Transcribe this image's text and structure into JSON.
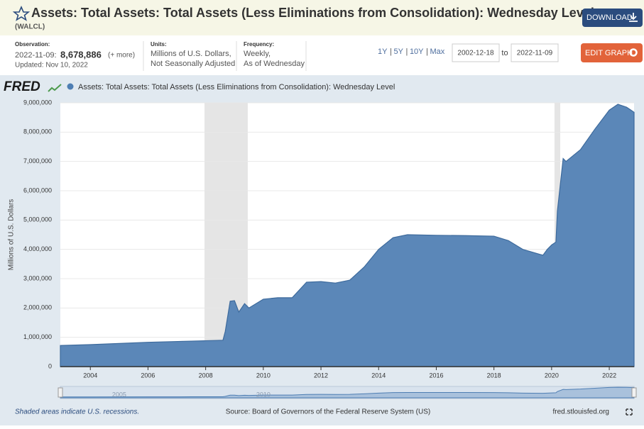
{
  "header": {
    "title": "Assets: Total Assets: Total Assets (Less Eliminations from Consolidation): Wednesday Level",
    "series_id": "(WALCL)",
    "download": "DOWNLOAD",
    "edit_graph": "EDIT GRAPH"
  },
  "info": {
    "observation_label": "Observation:",
    "observation_date": "2022-11-09:",
    "observation_value": "8,678,886",
    "more": "(+ more)",
    "updated": "Updated: Nov 10, 2022",
    "units_label": "Units:",
    "units_1": "Millions of U.S. Dollars,",
    "units_2": "Not Seasonally Adjusted",
    "frequency_label": "Frequency:",
    "frequency_1": "Weekly,",
    "frequency_2": "As of Wednesday",
    "ranges": [
      "1Y",
      "5Y",
      "10Y",
      "Max"
    ],
    "date_from": "2002-12-18",
    "to": "to",
    "date_to": "2022-11-09"
  },
  "logo": "FRED",
  "chart_data": {
    "type": "area",
    "y_label": "Millions of U.S. Dollars",
    "x": [
      2002.96,
      2004,
      2006,
      2007.5,
      2008.6,
      2008.68,
      2008.85,
      2009.0,
      2009.15,
      2009.35,
      2009.5,
      2010.0,
      2010.5,
      2011.0,
      2011.5,
      2012.0,
      2012.5,
      2013.0,
      2013.5,
      2014.0,
      2014.5,
      2015.0,
      2016,
      2017,
      2018,
      2018.5,
      2019.0,
      2019.7,
      2019.85,
      2020.0,
      2020.15,
      2020.2,
      2020.4,
      2020.5,
      2021.0,
      2021.5,
      2022.0,
      2022.3,
      2022.6,
      2022.86
    ],
    "series": [
      {
        "name": "Assets: Total Assets: Total Assets (Less Eliminations from Consolidation): Wednesday Level",
        "color": "#5b87b8",
        "values": [
          720000,
          750000,
          830000,
          870000,
          900000,
          1200000,
          2230000,
          2250000,
          1860000,
          2150000,
          2000000,
          2300000,
          2350000,
          2350000,
          2880000,
          2900000,
          2850000,
          2950000,
          3400000,
          4000000,
          4400000,
          4500000,
          4480000,
          4470000,
          4450000,
          4300000,
          4000000,
          3800000,
          4000000,
          4150000,
          4250000,
          5300000,
          7100000,
          7000000,
          7400000,
          8100000,
          8750000,
          8950000,
          8850000,
          8678886
        ]
      }
    ],
    "recessions": [
      [
        2007.96,
        2009.46
      ],
      [
        2020.1,
        2020.3
      ]
    ],
    "xlim": [
      2002.96,
      2022.86
    ],
    "ylim": [
      0,
      9000000
    ],
    "xticks": [
      2004,
      2006,
      2008,
      2010,
      2012,
      2014,
      2016,
      2018,
      2020,
      2022
    ],
    "yticks": [
      0,
      {
        "value": 1000000,
        "label": "1,000,000"
      },
      {
        "value": 2000000,
        "label": "2,000,000"
      },
      {
        "value": 3000000,
        "label": "3,000,000"
      },
      {
        "value": 4000000,
        "label": "4,000,000"
      },
      {
        "value": 5000000,
        "label": "5,000,000"
      },
      {
        "value": 6000000,
        "label": "6,000,000"
      },
      {
        "value": 7000000,
        "label": "7,000,000"
      },
      {
        "value": 8000000,
        "label": "8,000,000"
      },
      {
        "value": 9000000,
        "label": "9,000,000"
      }
    ],
    "navigator_labels": [
      {
        "value": 2005,
        "label": "2005"
      },
      {
        "value": 2010,
        "label": "2010"
      }
    ]
  },
  "footer": {
    "recession_note": "Shaded areas indicate U.S. recessions.",
    "source": "Source: Board of Governors of the Federal Reserve System (US)",
    "site": "fred.stlouisfed.org"
  }
}
